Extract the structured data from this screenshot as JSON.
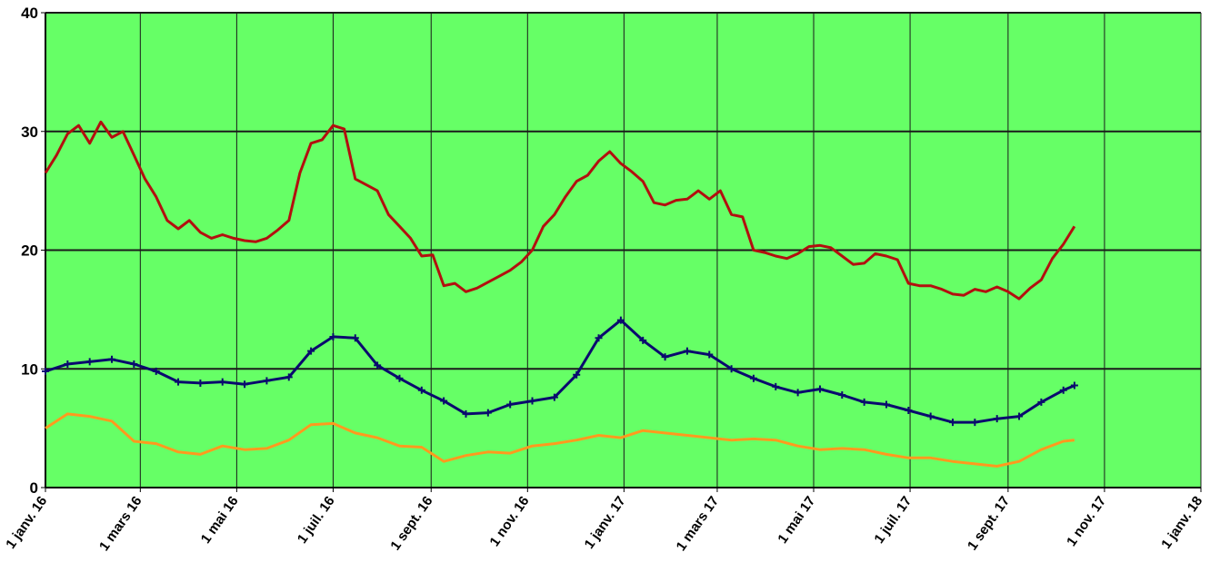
{
  "chart_data": {
    "type": "line",
    "title": "",
    "xlabel": "",
    "ylabel": "",
    "ylim": [
      0,
      40
    ],
    "yticks": [
      0,
      10,
      20,
      30,
      40
    ],
    "ytick_labels": [
      "0",
      "10",
      "20",
      "30",
      "40"
    ],
    "xlim": [
      "2016-01-01",
      "2018-01-01"
    ],
    "xticks": [
      "2016-01-01",
      "2016-03-01",
      "2016-05-01",
      "2016-07-01",
      "2016-09-01",
      "2016-11-01",
      "2017-01-01",
      "2017-03-01",
      "2017-05-01",
      "2017-07-01",
      "2017-09-01",
      "2017-11-01",
      "2018-01-01"
    ],
    "xtick_labels": [
      "1 janv. 16",
      "1 mars 16",
      "1 mai 16",
      "1 juil. 16",
      "1 sept. 16",
      "1 nov. 16",
      "1 janv. 17",
      "1 mars 17",
      "1 mai 17",
      "1 juil. 17",
      "1 sept. 17",
      "1 nov. 17",
      "1 janv. 18"
    ],
    "grid": true,
    "colors": {
      "plot_bg": "#66ff66",
      "grid": "#1a1a1a",
      "axis": "#000000"
    },
    "series": [
      {
        "color": "#b30f0f",
        "marker": "none",
        "x": [
          "2016-01-01",
          "2016-01-08",
          "2016-01-15",
          "2016-01-22",
          "2016-01-29",
          "2016-02-05",
          "2016-02-12",
          "2016-02-19",
          "2016-02-26",
          "2016-03-04",
          "2016-03-11",
          "2016-03-18",
          "2016-03-25",
          "2016-04-01",
          "2016-04-08",
          "2016-04-15",
          "2016-04-22",
          "2016-04-29",
          "2016-05-06",
          "2016-05-13",
          "2016-05-20",
          "2016-05-27",
          "2016-06-03",
          "2016-06-10",
          "2016-06-17",
          "2016-06-24",
          "2016-07-01",
          "2016-07-08",
          "2016-07-15",
          "2016-07-22",
          "2016-07-29",
          "2016-08-05",
          "2016-08-12",
          "2016-08-19",
          "2016-08-26",
          "2016-09-02",
          "2016-09-09",
          "2016-09-16",
          "2016-09-23",
          "2016-09-30",
          "2016-10-07",
          "2016-10-14",
          "2016-10-21",
          "2016-10-28",
          "2016-11-04",
          "2016-11-11",
          "2016-11-18",
          "2016-11-25",
          "2016-12-02",
          "2016-12-09",
          "2016-12-16",
          "2016-12-23",
          "2016-12-30",
          "2017-01-06",
          "2017-01-13",
          "2017-01-20",
          "2017-01-27",
          "2017-02-03",
          "2017-02-10",
          "2017-02-17",
          "2017-02-24",
          "2017-03-03",
          "2017-03-10",
          "2017-03-17",
          "2017-03-24",
          "2017-03-31",
          "2017-04-07",
          "2017-04-14",
          "2017-04-21",
          "2017-04-28",
          "2017-05-05",
          "2017-05-12",
          "2017-05-19",
          "2017-05-26",
          "2017-06-02",
          "2017-06-09",
          "2017-06-16",
          "2017-06-23",
          "2017-06-30",
          "2017-07-07",
          "2017-07-14",
          "2017-07-21",
          "2017-07-28",
          "2017-08-04",
          "2017-08-11",
          "2017-08-18",
          "2017-08-25",
          "2017-09-01",
          "2017-09-08",
          "2017-09-15",
          "2017-09-22",
          "2017-09-29",
          "2017-10-06",
          "2017-10-13"
        ],
        "values": [
          26.5,
          28,
          29.8,
          30.5,
          29,
          30.8,
          29.5,
          30,
          28,
          26,
          24.5,
          22.5,
          21.8,
          22.5,
          21.5,
          21,
          21.3,
          21,
          20.8,
          20.7,
          21,
          21.7,
          22.5,
          26.5,
          29,
          29.3,
          30.5,
          30.2,
          26,
          25.5,
          25,
          23,
          22,
          21,
          19.5,
          19.6,
          17,
          17.2,
          16.5,
          16.8,
          17.3,
          17.8,
          18.3,
          19,
          20,
          22,
          23,
          24.5,
          25.8,
          26.3,
          27.5,
          28.3,
          27.3,
          26.6,
          25.8,
          24,
          23.8,
          24.2,
          24.3,
          25,
          24.3,
          25,
          23,
          22.8,
          20,
          19.8,
          19.5,
          19.3,
          19.7,
          20.3,
          20.4,
          20.2,
          19.5,
          18.8,
          18.9,
          19.7,
          19.5,
          19.2,
          17.2,
          17,
          17,
          16.7,
          16.3,
          16.2,
          16.7,
          16.5,
          16.9,
          16.5,
          15.9,
          16.8,
          17.5,
          19.3,
          20.5,
          22
        ]
      },
      {
        "color": "#0a0a6e",
        "marker": "plus",
        "x": [
          "2016-01-01",
          "2016-01-15",
          "2016-01-29",
          "2016-02-12",
          "2016-02-26",
          "2016-03-11",
          "2016-03-25",
          "2016-04-08",
          "2016-04-22",
          "2016-05-06",
          "2016-05-20",
          "2016-06-03",
          "2016-06-17",
          "2016-07-01",
          "2016-07-15",
          "2016-07-29",
          "2016-08-12",
          "2016-08-26",
          "2016-09-09",
          "2016-09-23",
          "2016-10-07",
          "2016-10-21",
          "2016-11-04",
          "2016-11-18",
          "2016-12-02",
          "2016-12-16",
          "2016-12-30",
          "2017-01-13",
          "2017-01-27",
          "2017-02-10",
          "2017-02-24",
          "2017-03-10",
          "2017-03-24",
          "2017-04-07",
          "2017-04-21",
          "2017-05-05",
          "2017-05-19",
          "2017-06-02",
          "2017-06-16",
          "2017-06-30",
          "2017-07-14",
          "2017-07-28",
          "2017-08-11",
          "2017-08-25",
          "2017-09-08",
          "2017-09-22",
          "2017-10-06",
          "2017-10-13"
        ],
        "values": [
          9.8,
          10.4,
          10.6,
          10.8,
          10.4,
          9.8,
          8.9,
          8.8,
          8.9,
          8.7,
          9.0,
          9.3,
          11.5,
          12.7,
          12.6,
          10.3,
          9.2,
          8.2,
          7.3,
          6.2,
          6.3,
          7.0,
          7.3,
          7.6,
          9.5,
          12.6,
          14.1,
          12.4,
          11.0,
          11.5,
          11.2,
          10.0,
          9.2,
          8.5,
          8.0,
          8.3,
          7.8,
          7.2,
          7.0,
          6.5,
          6.0,
          5.5,
          5.5,
          5.8,
          6.0,
          7.2,
          8.2,
          8.6
        ]
      },
      {
        "color": "#ff9a1e",
        "marker": "none",
        "x": [
          "2016-01-01",
          "2016-01-15",
          "2016-01-29",
          "2016-02-12",
          "2016-02-26",
          "2016-03-11",
          "2016-03-25",
          "2016-04-08",
          "2016-04-22",
          "2016-05-06",
          "2016-05-20",
          "2016-06-03",
          "2016-06-17",
          "2016-07-01",
          "2016-07-15",
          "2016-07-29",
          "2016-08-12",
          "2016-08-26",
          "2016-09-09",
          "2016-09-23",
          "2016-10-07",
          "2016-10-21",
          "2016-11-04",
          "2016-11-18",
          "2016-12-02",
          "2016-12-16",
          "2016-12-30",
          "2017-01-13",
          "2017-01-27",
          "2017-02-10",
          "2017-02-24",
          "2017-03-10",
          "2017-03-24",
          "2017-04-07",
          "2017-04-21",
          "2017-05-05",
          "2017-05-19",
          "2017-06-02",
          "2017-06-16",
          "2017-06-30",
          "2017-07-14",
          "2017-07-28",
          "2017-08-11",
          "2017-08-25",
          "2017-09-08",
          "2017-09-22",
          "2017-10-06",
          "2017-10-13"
        ],
        "values": [
          5.0,
          6.2,
          6.0,
          5.6,
          3.9,
          3.7,
          3.0,
          2.8,
          3.5,
          3.2,
          3.3,
          4.0,
          5.3,
          5.4,
          4.6,
          4.2,
          3.5,
          3.4,
          2.2,
          2.7,
          3.0,
          2.9,
          3.5,
          3.7,
          4.0,
          4.4,
          4.2,
          4.8,
          4.6,
          4.4,
          4.2,
          4.0,
          4.1,
          4.0,
          3.5,
          3.2,
          3.3,
          3.2,
          2.8,
          2.5,
          2.5,
          2.2,
          2.0,
          1.8,
          2.2,
          3.2,
          3.9,
          4.0
        ]
      }
    ]
  }
}
